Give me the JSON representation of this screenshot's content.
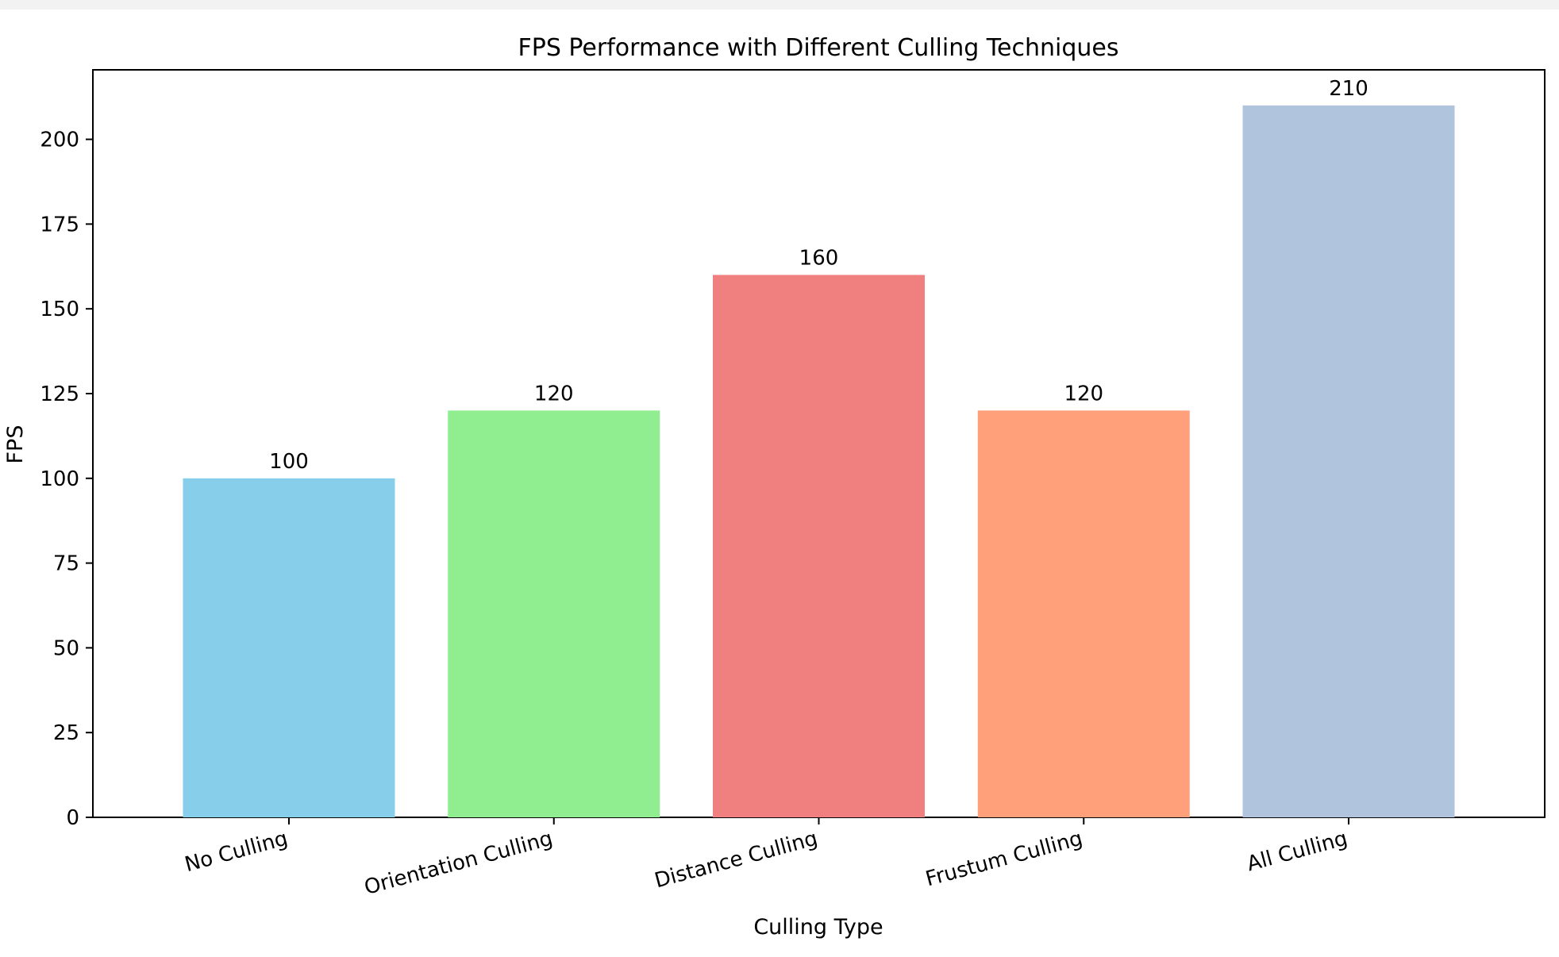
{
  "chart_data": {
    "type": "bar",
    "title": "FPS Performance with Different Culling Techniques",
    "xlabel": "Culling Type",
    "ylabel": "FPS",
    "categories": [
      "No Culling",
      "Orientation Culling",
      "Distance Culling",
      "Frustum Culling",
      "All Culling"
    ],
    "values": [
      100,
      120,
      160,
      120,
      210
    ],
    "data_labels": [
      "100",
      "120",
      "160",
      "120",
      "210"
    ],
    "colors": [
      "#87ceeb",
      "#90ee90",
      "#f08080",
      "#ffa07a",
      "#b0c4de"
    ],
    "yticks": [
      "0",
      "25",
      "50",
      "75",
      "100",
      "125",
      "150",
      "175",
      "200"
    ],
    "ylim": [
      0,
      220.5
    ],
    "grid": false,
    "legend": "none",
    "xtick_rotation_deg": 15
  }
}
